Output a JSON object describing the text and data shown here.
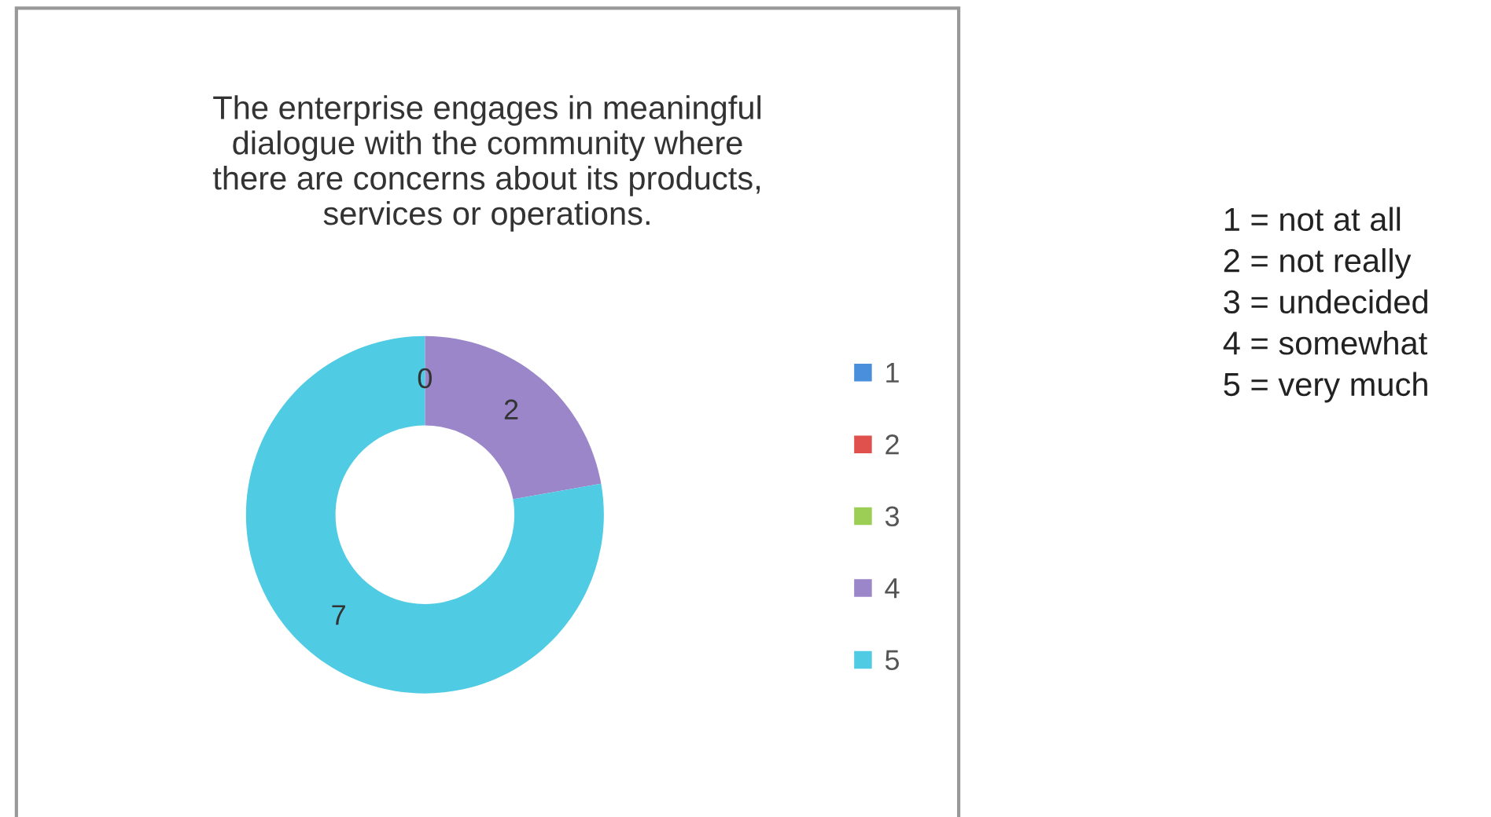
{
  "chart_data": {
    "type": "donut",
    "title": "The enterprise engages in meaningful\ndialogue with the community where\nthere are concerns about its products,\nservices or operations.",
    "categories": [
      "1",
      "2",
      "3",
      "4",
      "5"
    ],
    "values": [
      0,
      0,
      0,
      2,
      7
    ],
    "colors": [
      "#4a8fdc",
      "#e0504c",
      "#9ccd55",
      "#9b86c9",
      "#4fcbe4"
    ],
    "value_labels": [
      "0",
      null,
      null,
      "2",
      "7"
    ],
    "legend": "right",
    "annotations": [
      "1 = not at all",
      "2 = not really",
      "3 = undecided",
      "4 = somewhat",
      "5 = very much"
    ]
  }
}
